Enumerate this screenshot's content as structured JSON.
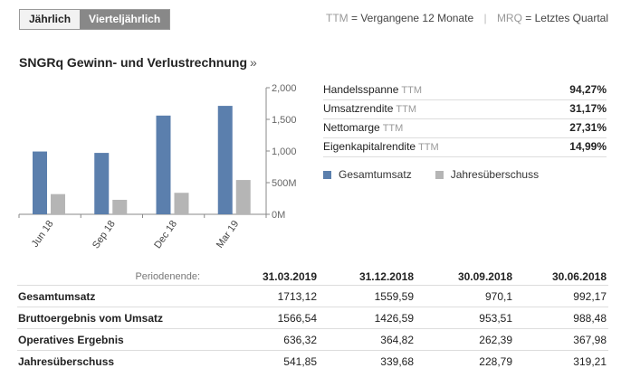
{
  "tabs": {
    "annual": "Jährlich",
    "quarterly": "Vierteljährlich"
  },
  "top_legend": {
    "ttm_abbr": "TTM",
    "ttm_text": "= Vergangene 12 Monate",
    "mrq_abbr": "MRQ",
    "mrq_text": "= Letztes Quartal"
  },
  "title": "SNGRq Gewinn- und Verlustrechnung",
  "title_suffix": "»",
  "ratios": [
    {
      "label": "Handelsspanne",
      "ttm": "TTM",
      "value": "94,27%"
    },
    {
      "label": "Umsatzrendite",
      "ttm": "TTM",
      "value": "31,17%"
    },
    {
      "label": "Nettomarge",
      "ttm": "TTM",
      "value": "27,31%"
    },
    {
      "label": "Eigenkapitalrendite",
      "ttm": "TTM",
      "value": "14,99%"
    }
  ],
  "legend": {
    "revenue": "Gesamtumsatz",
    "net_income": "Jahresüberschuss"
  },
  "colors": {
    "revenue": "#5b7fad",
    "net_income": "#b5b5b5",
    "active_tab": "#888888"
  },
  "chart_data": {
    "type": "bar",
    "categories": [
      "Jun 18",
      "Sep 18",
      "Dec 18",
      "Mar 19"
    ],
    "series": [
      {
        "name": "Gesamtumsatz",
        "values": [
          992.17,
          970.1,
          1559.59,
          1713.12
        ]
      },
      {
        "name": "Jahresüberschuss",
        "values": [
          319.21,
          228.79,
          339.68,
          541.85
        ]
      }
    ],
    "yticks": [
      0,
      500,
      1000,
      1500,
      2000
    ],
    "ytick_labels": [
      "0M",
      "500M",
      "1,000",
      "1,500",
      "2,000"
    ],
    "ylim": [
      0,
      2000
    ],
    "y_axis_side": "right"
  },
  "table": {
    "period_label": "Periodenende:",
    "columns": [
      "31.03.2019",
      "31.12.2018",
      "30.09.2018",
      "30.06.2018"
    ],
    "rows": [
      {
        "label": "Gesamtumsatz",
        "values": [
          "1713,12",
          "1559,59",
          "970,1",
          "992,17"
        ]
      },
      {
        "label": "Bruttoergebnis vom Umsatz",
        "values": [
          "1566,54",
          "1426,59",
          "953,51",
          "988,48"
        ]
      },
      {
        "label": "Operatives Ergebnis",
        "values": [
          "636,32",
          "364,82",
          "262,39",
          "367,98"
        ]
      },
      {
        "label": "Jahresüberschuss",
        "values": [
          "541,85",
          "339,68",
          "228,79",
          "319,21"
        ]
      }
    ]
  }
}
